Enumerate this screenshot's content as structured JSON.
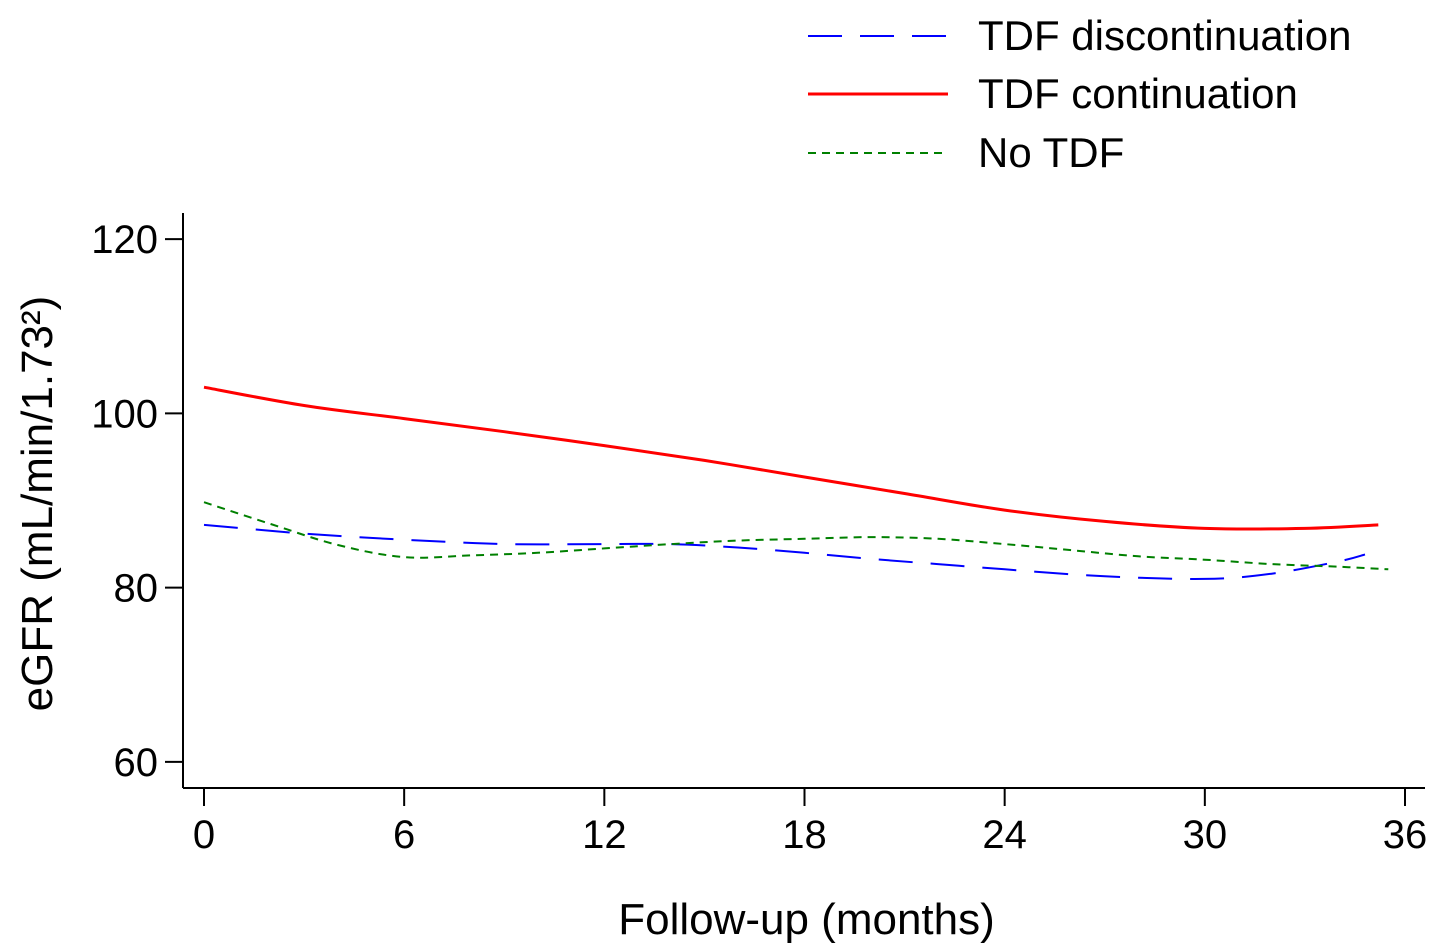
{
  "chart_data": {
    "type": "line",
    "title": "",
    "xlabel": "Follow-up (months)",
    "ylabel": "eGFR (mL/min/1.73²)",
    "xlim": [
      0,
      36
    ],
    "ylim": [
      57,
      123
    ],
    "xticks": [
      0,
      6,
      12,
      18,
      24,
      30,
      36
    ],
    "yticks": [
      60,
      80,
      100,
      120
    ],
    "xtick_labels": [
      "0",
      "6",
      "12",
      "18",
      "24",
      "30",
      "36"
    ],
    "ytick_labels": [
      "60",
      "80",
      "100",
      "120"
    ],
    "grid": false,
    "legend_position": "top-right",
    "series": [
      {
        "name": "TDF discontinuation",
        "color": "#0000ff",
        "dash": "long-dash",
        "x": [
          0,
          3,
          6,
          9,
          12,
          14,
          16,
          18,
          20,
          22,
          24,
          27,
          30,
          32,
          34,
          34.8
        ],
        "y": [
          87.2,
          86.2,
          85.5,
          85.0,
          85.0,
          85.0,
          84.6,
          84.0,
          83.3,
          82.7,
          82.1,
          81.3,
          81.0,
          81.6,
          83.0,
          83.8
        ]
      },
      {
        "name": "TDF continuation",
        "color": "#ff0000",
        "dash": "solid",
        "x": [
          0,
          3,
          6,
          9,
          12,
          15,
          18,
          21,
          24,
          27,
          30,
          33,
          35.2
        ],
        "y": [
          103.0,
          100.9,
          99.4,
          97.9,
          96.3,
          94.6,
          92.7,
          90.8,
          88.9,
          87.6,
          86.8,
          86.8,
          87.2
        ],
        "stroke_width": 3
      },
      {
        "name": "No TDF",
        "color": "#008000",
        "dash": "short-dash",
        "x": [
          0,
          2,
          4,
          6,
          8,
          10,
          12,
          14,
          16,
          18,
          20,
          22,
          24,
          26,
          28,
          30,
          32,
          34,
          35.5
        ],
        "y": [
          89.8,
          87.3,
          84.9,
          83.5,
          83.7,
          84.0,
          84.5,
          85.0,
          85.4,
          85.6,
          85.8,
          85.6,
          85.0,
          84.3,
          83.6,
          83.2,
          82.7,
          82.4,
          82.1
        ]
      }
    ]
  }
}
